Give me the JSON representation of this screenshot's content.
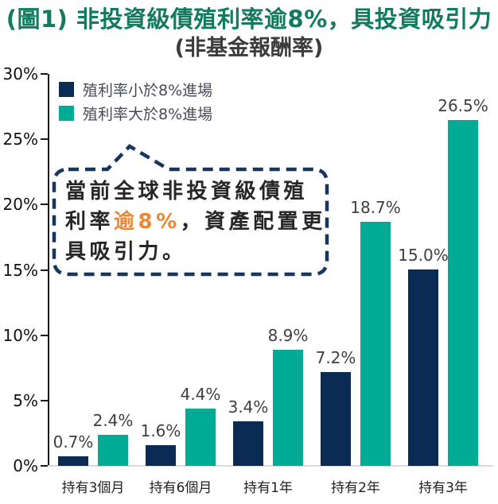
{
  "title": "(圖1) 非投資級債殖利率逾8%，具投資吸引力",
  "subtitle": "(非基金報酬率)",
  "legend": {
    "items": [
      {
        "label": "殖利率小於8%進場",
        "color": "#0a2b54"
      },
      {
        "label": "殖利率大於8%進場",
        "color": "#00ab96"
      }
    ]
  },
  "callout": {
    "line1": "當前全球非投資級債殖",
    "line2_pre": "利率",
    "line2_highlight": "逾8%",
    "line2_post": "，資產配置更",
    "line3": "具吸引力。",
    "highlight_color": "#ed8733",
    "border_color": "#16365e"
  },
  "chart_data": {
    "type": "bar",
    "categories": [
      "持有3個月",
      "持有6個月",
      "持有1年",
      "持有2年",
      "持有3年"
    ],
    "series": [
      {
        "name": "殖利率小於8%進場",
        "color": "#0a2b54",
        "values": [
          0.7,
          1.6,
          3.4,
          7.2,
          15.0
        ]
      },
      {
        "name": "殖利率大於8%進場",
        "color": "#00ab96",
        "values": [
          2.4,
          4.4,
          8.9,
          18.7,
          26.5
        ]
      }
    ],
    "value_labels": [
      [
        "0.7%",
        "1.6%",
        "3.4%",
        "7.2%",
        "15.0%"
      ],
      [
        "2.4%",
        "4.4%",
        "8.9%",
        "18.7%",
        "26.5%"
      ]
    ],
    "title": "(圖1) 非投資級債殖利率逾8%，具投資吸引力",
    "subtitle": "(非基金報酬率)",
    "xlabel": "",
    "ylabel": "",
    "ylim": [
      0,
      30
    ],
    "ytick_step": 5,
    "yticks": [
      "0%",
      "5%",
      "10%",
      "15%",
      "20%",
      "25%",
      "30%"
    ],
    "grid": false,
    "legend_position": "top-left"
  },
  "colors": {
    "title_green": "#127a5f",
    "navy": "#0a2b54",
    "teal": "#00ab96",
    "axis": "#1a1a1a",
    "baseline": "#d9d9d9",
    "label_text": "#3f3f3f",
    "callout_border": "#16365e",
    "highlight_orange": "#ed8733"
  }
}
